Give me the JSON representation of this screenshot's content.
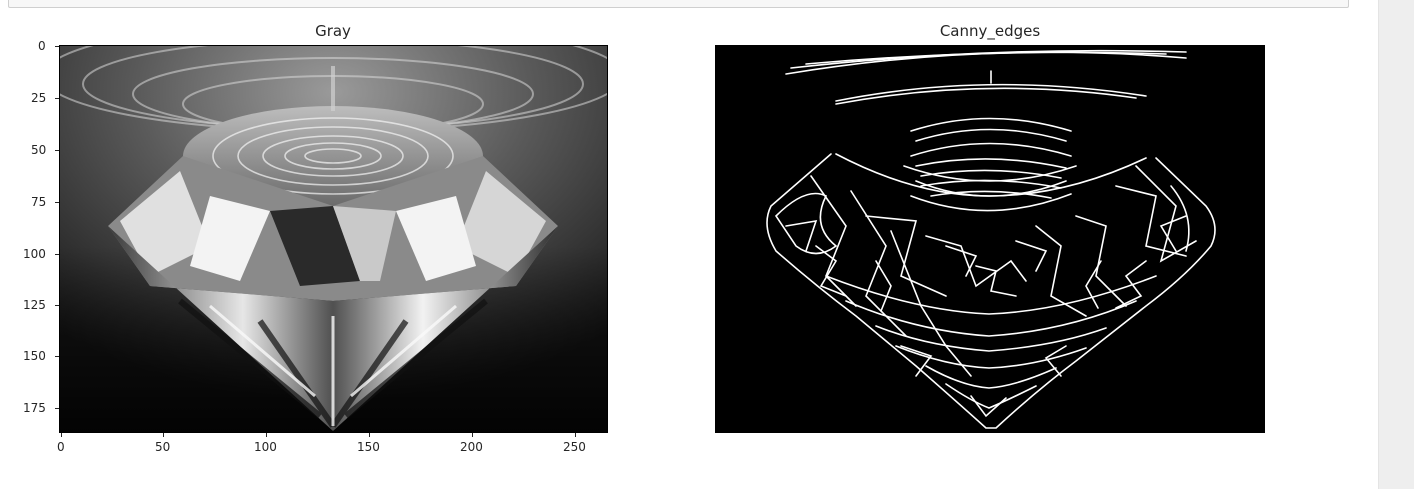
{
  "notebook": {
    "output_figures": [
      {
        "title": "Gray",
        "x_ticks": [
          "0",
          "50",
          "100",
          "150",
          "200",
          "250"
        ],
        "y_ticks": [
          "0",
          "25",
          "50",
          "75",
          "100",
          "125",
          "150",
          "175"
        ],
        "image": "grayscale-diamond-photo"
      },
      {
        "title": "Canny_edges",
        "image": "canny-edge-map-of-diamond"
      }
    ]
  },
  "colors": {
    "page_bg": "#ffffff",
    "scrollbar_bg": "#eeeeee",
    "text": "#262626",
    "edge_lines": "#ffffff",
    "image_bg": "#000000"
  }
}
